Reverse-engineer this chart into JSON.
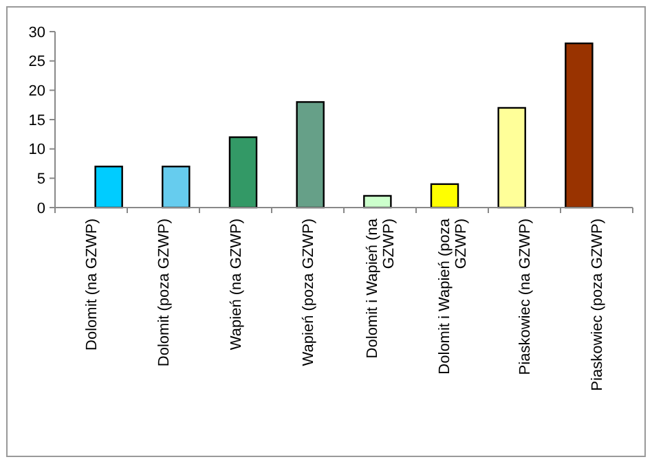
{
  "chart_data": {
    "type": "bar",
    "categories": [
      "Dolomit (na GZWP)",
      "Dolomit (poza GZWP)",
      "Wapień (na GZWP)",
      "Wapień (poza GZWP)",
      "Dolomit i Wapień (na GZWP)",
      "Dolomit i Wapień (poza GZWP)",
      "Piaskowiec (na GZWP)",
      "Piaskowiec (poza GZWP)"
    ],
    "values": [
      7,
      7,
      12,
      18,
      2,
      4,
      17,
      28
    ],
    "colors": [
      "#00ccff",
      "#66ccee",
      "#339966",
      "#66a088",
      "#ccffcc",
      "#ffff00",
      "#ffff99",
      "#993300"
    ],
    "ylim": [
      0,
      30
    ],
    "yticks": [
      0,
      5,
      10,
      15,
      20,
      25,
      30
    ],
    "grid": false
  }
}
